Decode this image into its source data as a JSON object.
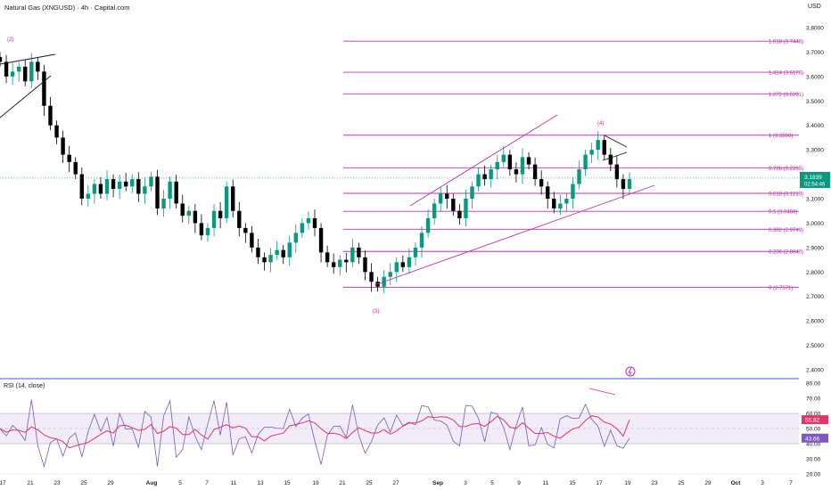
{
  "header": {
    "title": "Natural Gas (XNGUSD) · 4h · Capital.com",
    "currency": "USD"
  },
  "indicator": {
    "title": "RSI (14, close)"
  },
  "colors": {
    "up": "#089981",
    "down": "#000000",
    "fib": "#c231b0",
    "rsi": "#7e57c2",
    "rsi_ma": "#e2366a",
    "rsi_band": "#ede7f6",
    "price_label": "#089981",
    "divider": "#2962ff"
  },
  "price_labels": {
    "price": "3.1839",
    "countdown": "02:54:46"
  },
  "rsi_labels": {
    "ma": "55.82",
    "rsi": "43.66"
  },
  "waves": [
    "(2)",
    "(3)",
    "(4)"
  ],
  "chart_data": [
    {
      "type": "candlestick",
      "y_axis": {
        "ylim": [
          2.34,
          3.9
        ],
        "ticks": [
          "3.8000",
          "3.7000",
          "3.6000",
          "3.5000",
          "3.4000",
          "3.3000",
          "3.2000",
          "3.1000",
          "3.0000",
          "2.9000",
          "2.8000",
          "2.7000",
          "2.6000",
          "2.5000",
          "2.4000"
        ]
      },
      "x_axis": {
        "ticks": [
          "17",
          "21",
          "23",
          "25",
          "29",
          "Aug",
          "5",
          "7",
          "11",
          "13",
          "15",
          "19",
          "21",
          "25",
          "27",
          "Sep",
          "3",
          "5",
          "9",
          "11",
          "15",
          "17",
          "19",
          "23",
          "25",
          "29",
          "Oct",
          "3",
          "7"
        ]
      },
      "fib_levels": [
        {
          "ratio": "1.618",
          "value": 3.7446,
          "label": "1.618 (3.7446)"
        },
        {
          "ratio": "1.414",
          "value": 3.6176,
          "label": "1.414 (3.6176)"
        },
        {
          "ratio": "1.272",
          "value": 3.5291,
          "label": "1.272 (3.5291)"
        },
        {
          "ratio": "1",
          "value": 3.3598,
          "label": "1 (3.3598)"
        },
        {
          "ratio": "0.786",
          "value": 3.2265,
          "label": "0.786 (3.2265)"
        },
        {
          "ratio": "0.618",
          "value": 3.1219,
          "label": "0.618 (3.1219)"
        },
        {
          "ratio": "0.5",
          "value": 3.0484,
          "label": "0.5 (3.0484)"
        },
        {
          "ratio": "0.382",
          "value": 2.9749,
          "label": "0.382 (2.9749)"
        },
        {
          "ratio": "0.236",
          "value": 2.884,
          "label": "0.236 (2.8840)"
        },
        {
          "ratio": "0",
          "value": 2.7371,
          "label": "0 (2.7371)"
        }
      ],
      "last_price": 3.1839,
      "closes": [
        3.66,
        3.6,
        3.62,
        3.64,
        3.58,
        3.66,
        3.62,
        3.48,
        3.4,
        3.35,
        3.28,
        3.25,
        3.2,
        3.1,
        3.12,
        3.16,
        3.12,
        3.18,
        3.14,
        3.17,
        3.15,
        3.18,
        3.12,
        3.15,
        3.19,
        3.06,
        3.1,
        3.17,
        3.08,
        3.03,
        3.05,
        3.0,
        2.95,
        2.98,
        3.05,
        3.02,
        3.15,
        3.05,
        2.98,
        2.96,
        2.9,
        2.86,
        2.84,
        2.87,
        2.89,
        2.86,
        2.92,
        2.96,
        3.0,
        3.02,
        2.98,
        2.88,
        2.84,
        2.82,
        2.85,
        2.84,
        2.9,
        2.86,
        2.8,
        2.76,
        2.74,
        2.78,
        2.8,
        2.84,
        2.82,
        2.86,
        2.9,
        2.96,
        3.02,
        3.08,
        3.12,
        3.1,
        3.05,
        3.02,
        3.1,
        3.15,
        3.2,
        3.18,
        3.22,
        3.25,
        3.28,
        3.22,
        3.2,
        3.27,
        3.24,
        3.18,
        3.15,
        3.1,
        3.06,
        3.08,
        3.1,
        3.16,
        3.22,
        3.28,
        3.3,
        3.34,
        3.28,
        3.24,
        3.18,
        3.14,
        3.18
      ]
    },
    {
      "type": "line",
      "name": "RSI (14, close)",
      "y_axis": {
        "ylim": [
          15,
          85
        ],
        "ticks": [
          "80.00",
          "70.00",
          "60.00",
          "50.00",
          "40.00",
          "30.00",
          "20.00"
        ]
      },
      "band": [
        40,
        60
      ],
      "rsi_last": 43.66,
      "ma_last": 55.82
    }
  ]
}
